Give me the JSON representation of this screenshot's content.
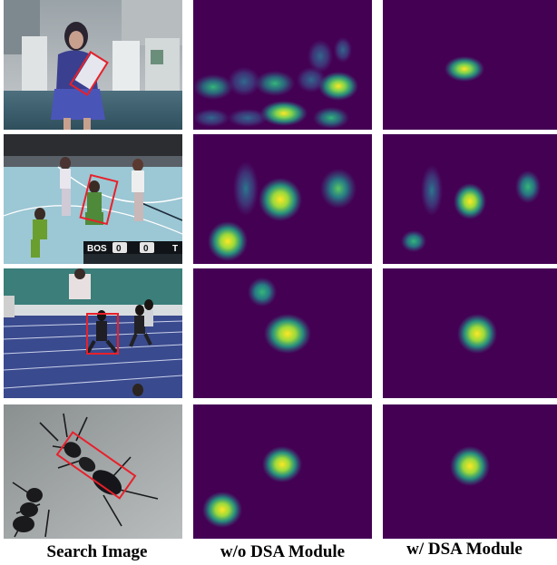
{
  "figure": {
    "columns": [
      {
        "id": "search",
        "label": "Search Image"
      },
      {
        "id": "without",
        "label": "w/o DSA Module"
      },
      {
        "id": "with",
        "label": "w/ DSA Module"
      }
    ],
    "rows": [
      {
        "id": "row1",
        "scene": "girl-holding-object"
      },
      {
        "id": "row2",
        "scene": "basketball-game"
      },
      {
        "id": "row3",
        "scene": "running-track"
      },
      {
        "id": "row4",
        "scene": "ants"
      }
    ],
    "overlay": {
      "scoreboard": [
        "BOS",
        "0",
        "0",
        "T"
      ]
    },
    "colors": {
      "heatmap_bg": "#440154",
      "bbox": "#e8202a",
      "heat_low": "#21918c",
      "heat_mid": "#5ec962",
      "heat_high": "#fde725"
    }
  }
}
